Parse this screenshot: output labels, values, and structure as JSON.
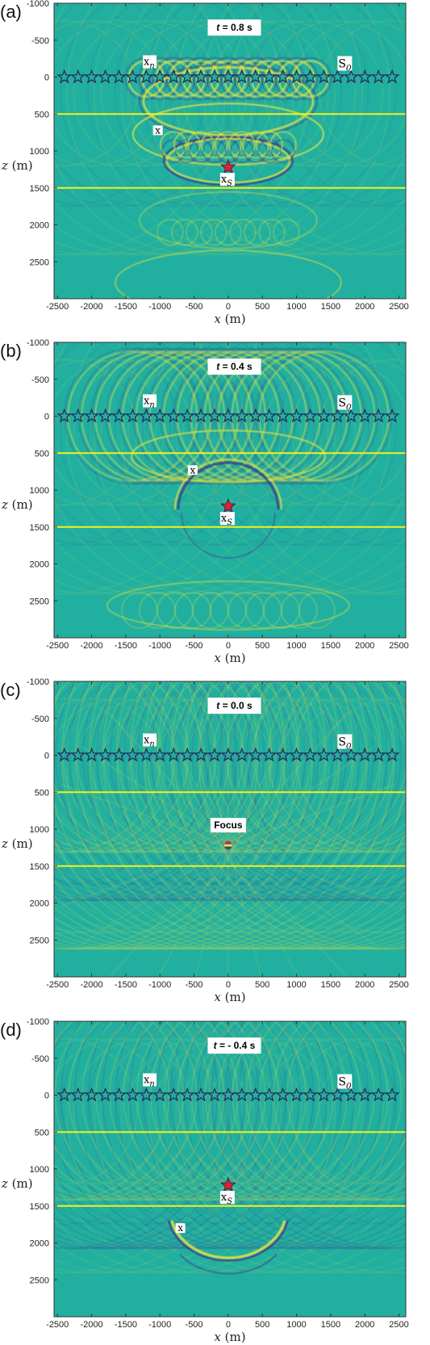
{
  "panels": [
    {
      "label": "(a)",
      "time_prefix": "t",
      "time_value": "= 0.8 s",
      "wavefront": "expanding",
      "annotations": [
        "xn",
        "S0",
        "x",
        "xS"
      ],
      "point_x": -1030,
      "point_z": 720
    },
    {
      "label": "(b)",
      "time_prefix": "t",
      "time_value": "= 0.4 s",
      "wavefront": "converging",
      "annotations": [
        "xn",
        "S0",
        "x",
        "xS"
      ],
      "point_x": -520,
      "point_z": 730
    },
    {
      "label": "(c)",
      "time_prefix": "t",
      "time_value": "= 0.0 s",
      "wavefront": "focus",
      "annotations": [
        "xn",
        "S0",
        "focus"
      ],
      "focus_text": "Focus"
    },
    {
      "label": "(d)",
      "time_prefix": "t",
      "time_value": "= - 0.4 s",
      "wavefront": "diverging-down",
      "annotations": [
        "xn",
        "S0",
        "x",
        "xS"
      ],
      "point_x": -700,
      "point_z": 1800
    }
  ],
  "axes": {
    "x_label_var": "x",
    "x_label_unit": "(m)",
    "z_label_var": "z",
    "z_label_unit": "(m)",
    "x_ticks": [
      "-2500",
      "-2000",
      "-1500",
      "-1000",
      "-500",
      "0",
      "500",
      "1000",
      "1500",
      "2000",
      "2500"
    ],
    "z_ticks": [
      "-1000",
      "-500",
      "0",
      "500",
      "1000",
      "1500",
      "2000",
      "2500"
    ],
    "x_range": [
      -2550,
      2600
    ],
    "z_range": [
      -1000,
      3000
    ]
  },
  "model": {
    "receiver_depth": 0,
    "receiver_x": [
      -2400,
      -2200,
      -2000,
      -1800,
      -1600,
      -1400,
      -1200,
      -1000,
      -800,
      -600,
      -400,
      -200,
      0,
      200,
      400,
      600,
      800,
      1000,
      1200,
      1400,
      1600,
      1800,
      2000,
      2200,
      2400
    ],
    "interfaces": [
      500,
      1500
    ],
    "source_x": 0,
    "source_z": 1220
  },
  "symbols": {
    "xn_main": "x",
    "xn_sub": "n",
    "S0_main": "S",
    "S0_sub": "0",
    "xS_main": "x",
    "xS_sub": "S",
    "x_plain": "x"
  },
  "colors": {
    "background": "#21b0a0",
    "interface": "#f2f21e",
    "receiver": "#2a2a5a",
    "source": "#e8202a",
    "wave_light": "#e6e23c",
    "wave_dark": "#3a3f8a"
  }
}
